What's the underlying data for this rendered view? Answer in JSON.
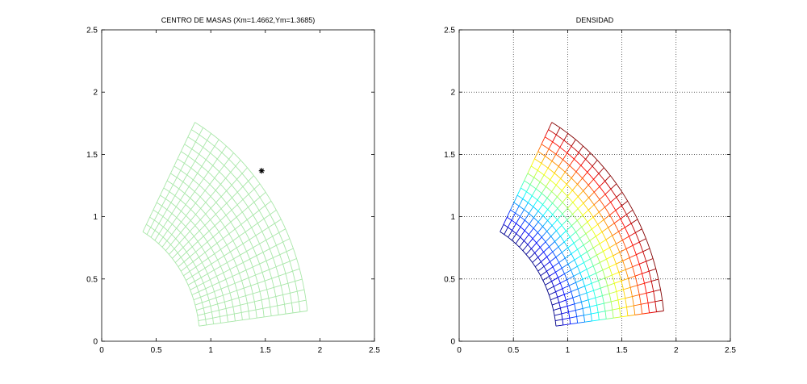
{
  "chart_data": [
    {
      "type": "mesh",
      "title": "CENTRO DE MASAS (Xm=1.4662,Ym=1.3685)",
      "xlabel": "",
      "ylabel": "",
      "xlim": [
        0,
        2.5
      ],
      "ylim": [
        0,
        2.5
      ],
      "xticks": [
        "0",
        "0.5",
        "1",
        "1.5",
        "2",
        "2.5"
      ],
      "yticks": [
        "0",
        "0.5",
        "1",
        "1.5",
        "2",
        "2.5"
      ],
      "grid": false,
      "mesh": {
        "shape": "annular sector",
        "radius_range": [
          1.0,
          2.0
        ],
        "angle_range_deg": [
          7.0,
          61.5
        ],
        "center": [
          -0.1,
          -0.0
        ],
        "radial_divisions": 15,
        "angular_divisions": 22,
        "color": "#a9e7a9"
      },
      "center_of_mass": {
        "x": 1.4662,
        "y": 1.3685,
        "marker": "*"
      }
    },
    {
      "type": "mesh",
      "title": "DENSIDAD",
      "xlabel": "",
      "ylabel": "",
      "xlim": [
        0,
        2.5
      ],
      "ylim": [
        0,
        2.5
      ],
      "xticks": [
        "0",
        "0.5",
        "1",
        "1.5",
        "2",
        "2.5"
      ],
      "yticks": [
        "0",
        "0.5",
        "1",
        "1.5",
        "2",
        "2.5"
      ],
      "grid": true,
      "mesh": {
        "shape": "annular sector",
        "radius_range": [
          1.0,
          2.0
        ],
        "angle_range_deg": [
          7.0,
          61.5
        ],
        "center": [
          -0.1,
          -0.0
        ],
        "radial_divisions": 15,
        "angular_divisions": 22,
        "colormap": "jet",
        "color_by": "radius"
      }
    }
  ]
}
